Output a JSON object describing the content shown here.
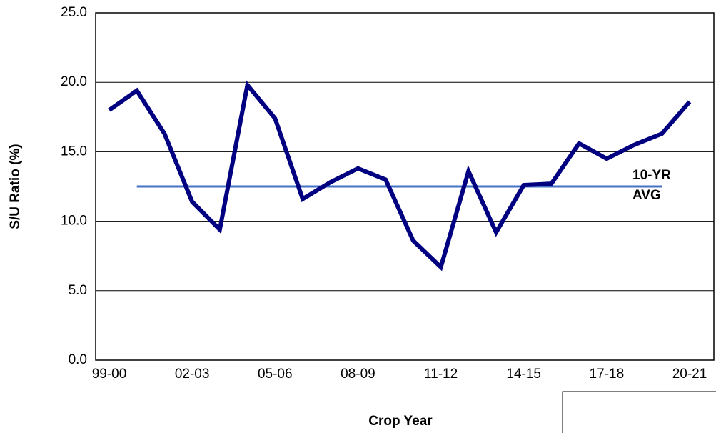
{
  "chart_data": {
    "type": "line",
    "x_label": "Crop Year",
    "y_label": "S/U Ratio (%)",
    "categories": [
      "99-00",
      null,
      null,
      "02-03",
      null,
      null,
      "05-06",
      null,
      null,
      "08-09",
      null,
      null,
      "11-12",
      null,
      null,
      "14-15",
      null,
      null,
      "17-18",
      null,
      null,
      "20-21"
    ],
    "series": [
      {
        "name": "S/U Ratio",
        "color": "#000080",
        "values": [
          18.0,
          19.4,
          16.3,
          11.4,
          9.4,
          19.8,
          17.4,
          11.6,
          12.8,
          13.8,
          13.0,
          8.6,
          6.7,
          13.6,
          9.2,
          12.6,
          12.7,
          15.6,
          14.5,
          15.5,
          16.3,
          18.6
        ]
      },
      {
        "name": "10-YR AVG",
        "color": "#4472c4",
        "values": [
          null,
          12.5,
          12.5,
          12.5,
          12.5,
          12.5,
          12.5,
          12.5,
          12.5,
          12.5,
          12.5,
          12.5,
          12.5,
          12.5,
          12.5,
          12.5,
          12.5,
          12.5,
          12.5,
          12.5,
          12.5,
          null
        ]
      }
    ],
    "ylim": [
      0,
      25
    ],
    "yticks": [
      {
        "value": 0,
        "label": "0.0"
      },
      {
        "value": 5,
        "label": "5.0"
      },
      {
        "value": 10,
        "label": "10.0"
      },
      {
        "value": 15,
        "label": "15.0"
      },
      {
        "value": 20,
        "label": "20.0"
      },
      {
        "value": 25,
        "label": "25.0"
      }
    ],
    "grid": true
  }
}
